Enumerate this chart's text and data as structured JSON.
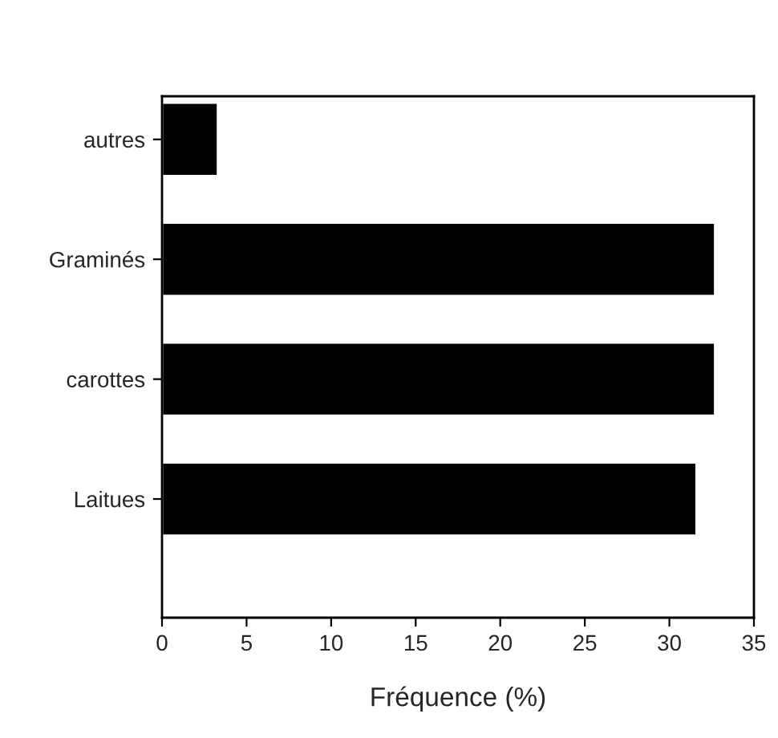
{
  "chart_data": {
    "type": "bar",
    "orientation": "horizontal",
    "xlabel": "Fréquence (%)",
    "categories": [
      "autres",
      "Graminés",
      "carottes",
      "Laitues"
    ],
    "series": [
      {
        "color": "#000000",
        "values": [
          3.3,
          32.7,
          32.7,
          31.6
        ]
      }
    ],
    "xlim": [
      0,
      35
    ],
    "xticks": [
      0,
      5,
      10,
      15,
      20,
      25,
      30,
      35
    ],
    "grid": false,
    "legend": false
  }
}
